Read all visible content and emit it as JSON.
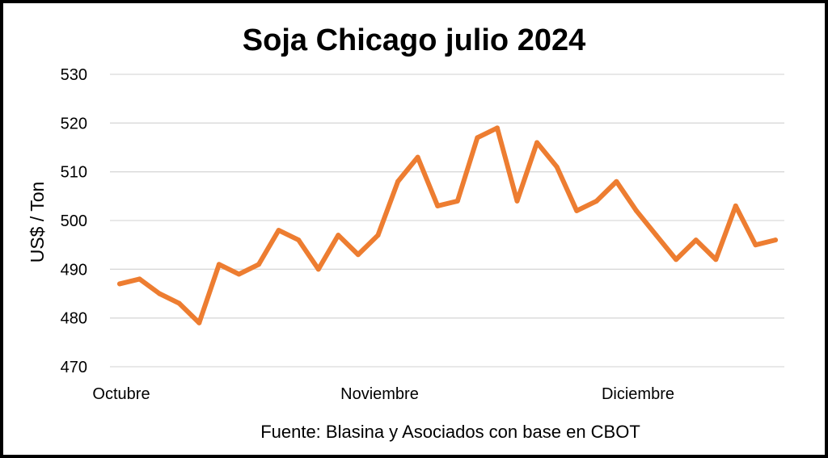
{
  "chart_data": {
    "type": "line",
    "title": "Soja Chicago julio 2024",
    "ylabel": "US$ / Ton",
    "xlabel": "",
    "source": "Fuente: Blasina y Asociados con base en CBOT",
    "ylim": [
      470,
      530
    ],
    "yticks": [
      470,
      480,
      490,
      500,
      510,
      520,
      530
    ],
    "grid": true,
    "legend": "none",
    "line_color": "#ED7D31",
    "x_tick_labels": [
      {
        "label": "Octubre",
        "index": 0
      },
      {
        "label": "Noviembre",
        "index": 13
      },
      {
        "label": "Diciembre",
        "index": 26
      }
    ],
    "series": [
      {
        "values": [
          487,
          488,
          485,
          483,
          479,
          491,
          489,
          491,
          498,
          496,
          490,
          497,
          493,
          497,
          508,
          513,
          503,
          504,
          517,
          519,
          504,
          516,
          511,
          502,
          504,
          508,
          502,
          497,
          492,
          496,
          492,
          503,
          495,
          496
        ]
      }
    ]
  }
}
